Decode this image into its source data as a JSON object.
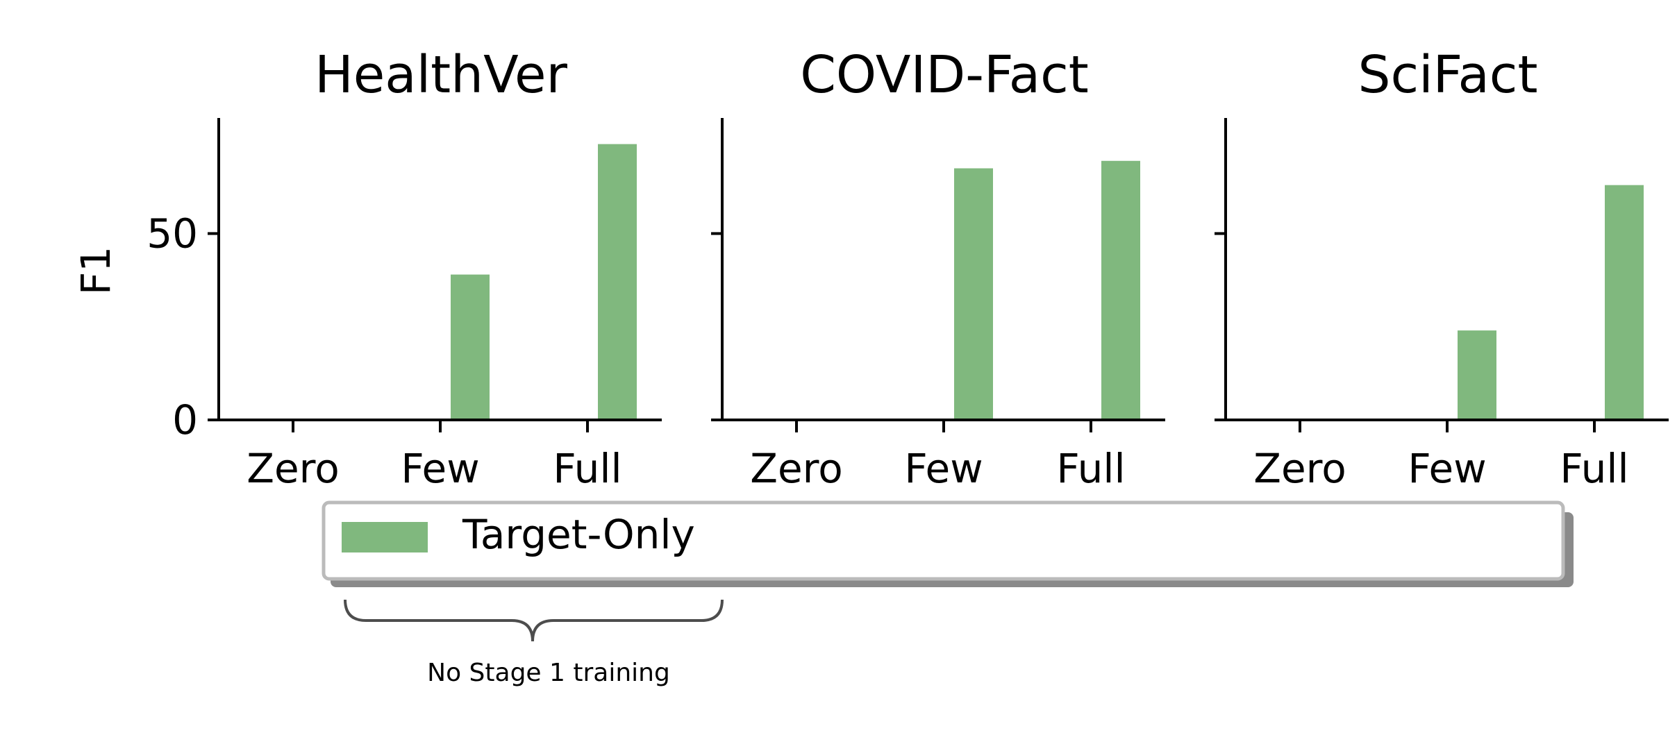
{
  "chart_data": [
    {
      "type": "bar",
      "title": "HealthVer",
      "categories": [
        "Zero",
        "Few",
        "Full"
      ],
      "series": [
        {
          "name": "Target-Only",
          "values": [
            0,
            39,
            74
          ]
        }
      ],
      "ylabel": "F1",
      "yticks": [
        0,
        50
      ],
      "ylim": [
        0,
        81
      ]
    },
    {
      "type": "bar",
      "title": "COVID-Fact",
      "categories": [
        "Zero",
        "Few",
        "Full"
      ],
      "series": [
        {
          "name": "Target-Only",
          "values": [
            0,
            67.5,
            69.5
          ]
        }
      ],
      "ylabel": "",
      "yticks": [
        0,
        50
      ],
      "ylim": [
        0,
        81
      ]
    },
    {
      "type": "bar",
      "title": "SciFact",
      "categories": [
        "Zero",
        "Few",
        "Full"
      ],
      "series": [
        {
          "name": "Target-Only",
          "values": [
            0,
            24,
            63
          ]
        }
      ],
      "ylabel": "",
      "yticks": [
        0,
        50
      ],
      "ylim": [
        0,
        81
      ]
    }
  ],
  "legend": {
    "placement": "bottom",
    "entries": [
      "Target-Only"
    ]
  },
  "annotation": {
    "text": "No Stage 1 training"
  },
  "colors": {
    "bar": "#80b87e",
    "axis": "#000000",
    "legend_border": "#bbbbbb",
    "brace": "#4d4d4d"
  }
}
